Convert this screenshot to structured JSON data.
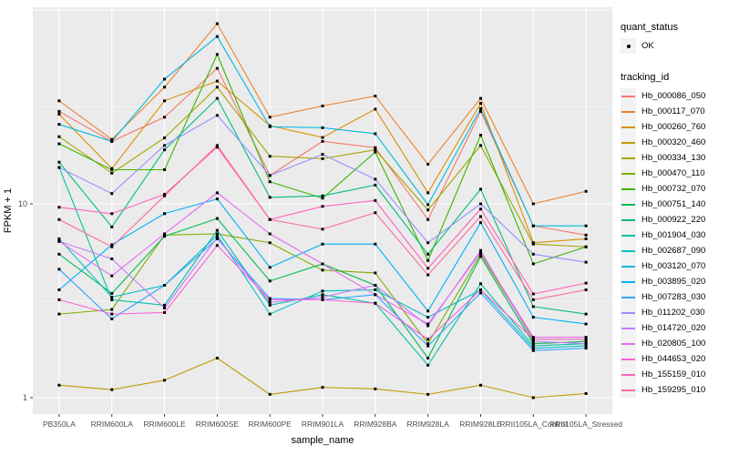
{
  "figure": {
    "x_axis_label": "sample_name",
    "y_axis_label": "FPKM + 1",
    "y_tick_labels": [
      "10",
      "1"
    ]
  },
  "legend": {
    "quant_status": {
      "title": "quant_status",
      "items": [
        {
          "label": "OK",
          "symbol": "point"
        }
      ]
    },
    "tracking": {
      "title": "tracking_id"
    }
  },
  "chart_data": {
    "type": "line",
    "title": "",
    "xlabel": "sample_name",
    "ylabel": "FPKM + 1",
    "y_scale": "log10",
    "y_major_ticks": [
      1,
      10
    ],
    "y_gridlines_major": [
      1,
      10,
      100
    ],
    "y_gridlines_minor": [
      3.162,
      31.62
    ],
    "ylim": [
      0.93,
      105
    ],
    "grid": true,
    "legend_position": "right",
    "point_symbol": "black-square",
    "panel_background": "#EBEBEB",
    "categories": [
      "PB350LA",
      "RRIM600LA",
      "RRIM600LE",
      "RRIM600SE",
      "RRIM600PE",
      "RRIM901LA",
      "RRIM928BA",
      "RRIM928LA",
      "RRIM928LE",
      "RRII105LA_Control",
      "RRII105LA_Stressed"
    ],
    "series": [
      {
        "name": "Hb_000086_050",
        "color": "#F8766D",
        "values": [
          30,
          21,
          28,
          50,
          14,
          21,
          19.5,
          8.3,
          30,
          7.7,
          6.9
        ]
      },
      {
        "name": "Hb_000117_070",
        "color": "#EA8331",
        "values": [
          34,
          21.5,
          40,
          85,
          28,
          32,
          36,
          16,
          35,
          10,
          11.6
        ]
      },
      {
        "name": "Hb_000260_760",
        "color": "#D89000",
        "values": [
          29,
          15.2,
          34,
          43,
          25.3,
          22,
          30.8,
          11.4,
          33,
          6.3,
          6.6
        ]
      },
      {
        "name": "Hb_000320_460",
        "color": "#C09B00",
        "values": [
          1.16,
          1.1,
          1.23,
          1.6,
          1.04,
          1.13,
          1.11,
          1.04,
          1.16,
          1.0,
          1.05
        ]
      },
      {
        "name": "Hb_000334_130",
        "color": "#A3A500",
        "values": [
          22.2,
          14.4,
          21.9,
          40,
          17.6,
          17.1,
          19,
          9.3,
          20,
          6.2,
          6.0
        ]
      },
      {
        "name": "Hb_000470_110",
        "color": "#7CAE00",
        "values": [
          2.7,
          2.85,
          6.9,
          7.0,
          6.3,
          4.55,
          4.4,
          1.9,
          5.5,
          2.0,
          2.0
        ]
      },
      {
        "name": "Hb_000732_070",
        "color": "#39B600",
        "values": [
          20.4,
          15,
          15,
          59,
          13,
          10.7,
          18.5,
          5.1,
          22.6,
          4.9,
          6.0
        ]
      },
      {
        "name": "Hb_000751_140",
        "color": "#00BB4E",
        "values": [
          5.5,
          3.45,
          6.8,
          8.4,
          4.0,
          4.9,
          3.8,
          1.6,
          5.35,
          1.9,
          1.95
        ]
      },
      {
        "name": "Hb_000922_220",
        "color": "#00BF7D",
        "values": [
          16.4,
          7.6,
          19,
          35,
          10.8,
          11,
          12.5,
          5.5,
          11.9,
          2.95,
          2.7
        ]
      },
      {
        "name": "Hb_001904_030",
        "color": "#00C1A3",
        "values": [
          15.4,
          3.2,
          3.0,
          7.3,
          3.0,
          3.4,
          3.07,
          1.47,
          3.87,
          1.85,
          1.9
        ]
      },
      {
        "name": "Hb_002687_090",
        "color": "#00BFC4",
        "values": [
          6.6,
          3.3,
          3.8,
          6.9,
          2.7,
          3.55,
          3.6,
          2.6,
          3.6,
          1.8,
          1.85
        ]
      },
      {
        "name": "Hb_003120_070",
        "color": "#00BAE0",
        "values": [
          25.7,
          21,
          44,
          73,
          25,
          24.7,
          23,
          9.9,
          31,
          7.7,
          7.7
        ]
      },
      {
        "name": "Hb_003895_020",
        "color": "#00B0F6",
        "values": [
          3.6,
          6.15,
          8.9,
          10.6,
          4.7,
          6.2,
          6.2,
          2.8,
          8.0,
          2.6,
          2.4
        ]
      },
      {
        "name": "Hb_007283_030",
        "color": "#35A2FF",
        "values": [
          4.6,
          2.55,
          3.8,
          6.6,
          3.25,
          3.2,
          3.4,
          1.85,
          3.47,
          1.75,
          1.8
        ]
      },
      {
        "name": "Hb_011202_030",
        "color": "#9590FF",
        "values": [
          15.4,
          11.3,
          20,
          28.6,
          14,
          18,
          13.4,
          6.3,
          10,
          5.5,
          5.0
        ]
      },
      {
        "name": "Hb_014720_020",
        "color": "#C77CFF",
        "values": [
          6.4,
          5.2,
          2.9,
          6.7,
          3.1,
          3.3,
          3.8,
          2.35,
          5.75,
          1.95,
          1.9
        ]
      },
      {
        "name": "Hb_020805_100",
        "color": "#E76BF3",
        "values": [
          6.4,
          4.25,
          7.0,
          11.4,
          7.0,
          4.9,
          3.4,
          2.4,
          5.6,
          2.05,
          2.05
        ]
      },
      {
        "name": "Hb_044653_020",
        "color": "#FA62DB",
        "values": [
          3.2,
          2.7,
          2.75,
          6.1,
          3.2,
          3.2,
          3.07,
          2.0,
          3.6,
          2.0,
          2.0
        ]
      },
      {
        "name": "Hb_155159_010",
        "color": "#FF62BC",
        "values": [
          9.6,
          8.9,
          11.2,
          19.6,
          8.3,
          9.7,
          10.4,
          4.65,
          9.4,
          3.43,
          3.9
        ]
      },
      {
        "name": "Hb_159295_010",
        "color": "#FF6A98",
        "values": [
          8.3,
          6.0,
          11,
          20,
          8.3,
          7.4,
          9.0,
          4.3,
          8.6,
          3.2,
          3.6
        ]
      }
    ]
  }
}
